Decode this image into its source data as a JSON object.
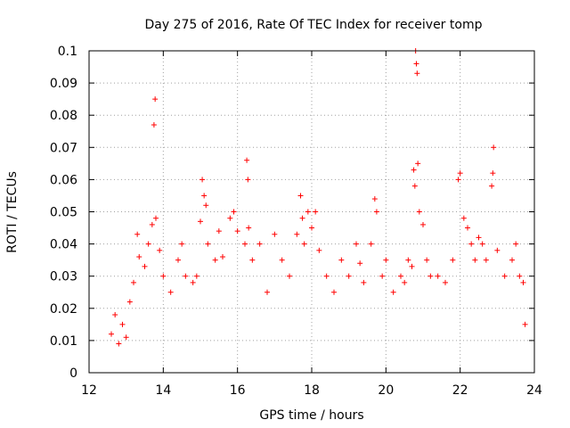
{
  "chart_data": {
    "type": "scatter",
    "title": "Day 275 of 2016, Rate Of TEC Index for receiver tomp",
    "xlabel": "GPS time / hours",
    "ylabel": "ROTI / TECUs",
    "xlim": [
      12,
      24
    ],
    "ylim": [
      0,
      0.1
    ],
    "xticks": [
      "12",
      "14",
      "16",
      "18",
      "20",
      "22",
      "24"
    ],
    "yticks": [
      "0",
      "0.01",
      "0.02",
      "0.03",
      "0.04",
      "0.05",
      "0.06",
      "0.07",
      "0.08",
      "0.09",
      "0.1"
    ],
    "grid": true,
    "marker": "+",
    "color": "#ff0000",
    "series": [
      {
        "name": "ROTI",
        "points": [
          [
            12.6,
            0.012
          ],
          [
            12.7,
            0.018
          ],
          [
            12.8,
            0.009
          ],
          [
            12.9,
            0.015
          ],
          [
            13.0,
            0.011
          ],
          [
            13.1,
            0.022
          ],
          [
            13.2,
            0.028
          ],
          [
            13.3,
            0.043
          ],
          [
            13.35,
            0.036
          ],
          [
            13.5,
            0.033
          ],
          [
            13.6,
            0.04
          ],
          [
            13.7,
            0.046
          ],
          [
            13.75,
            0.077
          ],
          [
            13.78,
            0.085
          ],
          [
            13.8,
            0.048
          ],
          [
            13.9,
            0.038
          ],
          [
            14.0,
            0.03
          ],
          [
            14.2,
            0.025
          ],
          [
            14.4,
            0.035
          ],
          [
            14.5,
            0.04
          ],
          [
            14.6,
            0.03
          ],
          [
            14.8,
            0.028
          ],
          [
            14.9,
            0.03
          ],
          [
            15.0,
            0.047
          ],
          [
            15.05,
            0.06
          ],
          [
            15.1,
            0.055
          ],
          [
            15.15,
            0.052
          ],
          [
            15.2,
            0.04
          ],
          [
            15.4,
            0.035
          ],
          [
            15.5,
            0.044
          ],
          [
            15.6,
            0.036
          ],
          [
            15.8,
            0.048
          ],
          [
            15.9,
            0.05
          ],
          [
            16.0,
            0.044
          ],
          [
            16.2,
            0.04
          ],
          [
            16.25,
            0.066
          ],
          [
            16.28,
            0.06
          ],
          [
            16.3,
            0.045
          ],
          [
            16.4,
            0.035
          ],
          [
            16.6,
            0.04
          ],
          [
            16.8,
            0.025
          ],
          [
            17.0,
            0.043
          ],
          [
            17.2,
            0.035
          ],
          [
            17.4,
            0.03
          ],
          [
            17.6,
            0.043
          ],
          [
            17.7,
            0.055
          ],
          [
            17.75,
            0.048
          ],
          [
            17.8,
            0.04
          ],
          [
            17.9,
            0.05
          ],
          [
            18.0,
            0.045
          ],
          [
            18.1,
            0.05
          ],
          [
            18.2,
            0.038
          ],
          [
            18.4,
            0.03
          ],
          [
            18.6,
            0.025
          ],
          [
            18.8,
            0.035
          ],
          [
            19.0,
            0.03
          ],
          [
            19.2,
            0.04
          ],
          [
            19.3,
            0.034
          ],
          [
            19.4,
            0.028
          ],
          [
            19.6,
            0.04
          ],
          [
            19.7,
            0.054
          ],
          [
            19.75,
            0.05
          ],
          [
            19.9,
            0.03
          ],
          [
            20.0,
            0.035
          ],
          [
            20.2,
            0.025
          ],
          [
            20.4,
            0.03
          ],
          [
            20.5,
            0.028
          ],
          [
            20.6,
            0.035
          ],
          [
            20.7,
            0.033
          ],
          [
            20.75,
            0.063
          ],
          [
            20.78,
            0.058
          ],
          [
            20.8,
            0.1
          ],
          [
            20.82,
            0.096
          ],
          [
            20.84,
            0.093
          ],
          [
            20.86,
            0.065
          ],
          [
            20.9,
            0.05
          ],
          [
            21.0,
            0.046
          ],
          [
            21.1,
            0.035
          ],
          [
            21.2,
            0.03
          ],
          [
            21.4,
            0.03
          ],
          [
            21.6,
            0.028
          ],
          [
            21.8,
            0.035
          ],
          [
            21.95,
            0.06
          ],
          [
            22.0,
            0.062
          ],
          [
            22.1,
            0.048
          ],
          [
            22.2,
            0.045
          ],
          [
            22.3,
            0.04
          ],
          [
            22.4,
            0.035
          ],
          [
            22.5,
            0.042
          ],
          [
            22.6,
            0.04
          ],
          [
            22.7,
            0.035
          ],
          [
            22.85,
            0.058
          ],
          [
            22.88,
            0.062
          ],
          [
            22.9,
            0.07
          ],
          [
            23.0,
            0.038
          ],
          [
            23.2,
            0.03
          ],
          [
            23.4,
            0.035
          ],
          [
            23.5,
            0.04
          ],
          [
            23.6,
            0.03
          ],
          [
            23.7,
            0.028
          ],
          [
            23.75,
            0.015
          ]
        ]
      }
    ]
  }
}
